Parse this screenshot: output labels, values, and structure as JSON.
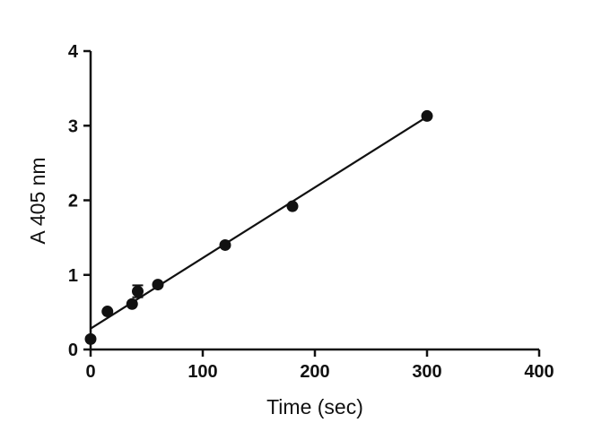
{
  "chart_data": {
    "type": "scatter",
    "xlabel": "Time (sec)",
    "ylabel": "A 405 nm",
    "xlim": [
      0,
      400
    ],
    "ylim": [
      0,
      4
    ],
    "xticks": [
      0,
      100,
      200,
      300,
      400
    ],
    "yticks": [
      0,
      1,
      2,
      3,
      4
    ],
    "xtick_labels": [
      "0",
      "100",
      "200",
      "300",
      "400"
    ],
    "ytick_labels": [
      "0",
      "1",
      "2",
      "3",
      "4"
    ],
    "grid": false,
    "legend": "none",
    "series": [
      {
        "points": [
          {
            "x": 0,
            "y": 0.14
          },
          {
            "x": 15,
            "y": 0.51
          },
          {
            "x": 37,
            "y": 0.61
          },
          {
            "x": 42,
            "y": 0.78,
            "error": 0.08
          },
          {
            "x": 60,
            "y": 0.87
          },
          {
            "x": 120,
            "y": 1.4
          },
          {
            "x": 180,
            "y": 1.92
          },
          {
            "x": 300,
            "y": 3.13
          }
        ],
        "color": "#111111"
      }
    ],
    "fit_line": {
      "x": [
        0,
        300
      ],
      "y": [
        0.28,
        3.12
      ],
      "color": "#111111"
    }
  }
}
